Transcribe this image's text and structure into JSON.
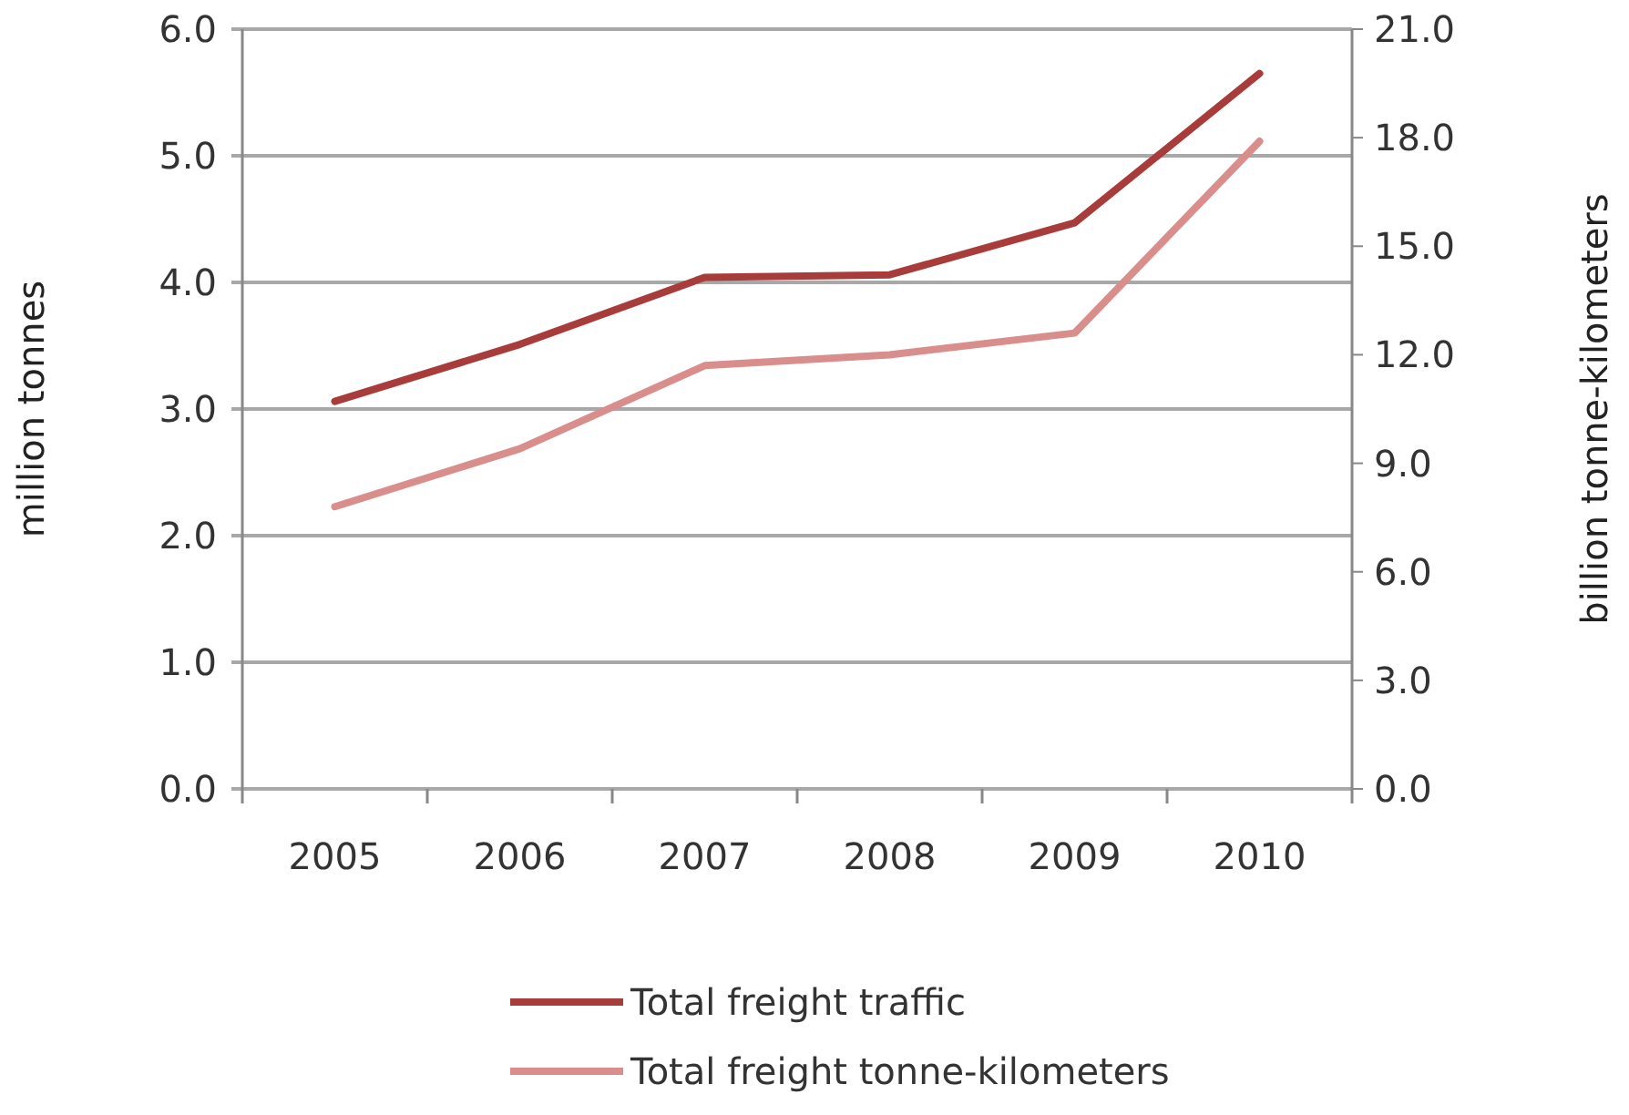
{
  "chart_data": {
    "type": "line",
    "categories": [
      "2005",
      "2006",
      "2007",
      "2008",
      "2009",
      "2010"
    ],
    "ylabel": "million tonnes",
    "y2label": "billion tonne-kilometers",
    "series": [
      {
        "name": "Total freight traffic",
        "color": "#a83c3a",
        "values": [
          3.06,
          3.51,
          4.04,
          4.06,
          4.47,
          5.65
        ]
      },
      {
        "name": "Total freight tonne-kilometers",
        "color": "#d98e8c",
        "axis": "y2",
        "values": [
          7.8,
          9.4,
          11.7,
          12.0,
          12.6,
          17.9
        ]
      }
    ],
    "ylim": [
      0,
      6
    ],
    "yticks": [
      {
        "value": 0,
        "label": "0.0"
      },
      {
        "value": 1,
        "label": "1.0"
      },
      {
        "value": 2,
        "label": "2.0"
      },
      {
        "value": 3,
        "label": "3.0"
      },
      {
        "value": 4,
        "label": "4.0"
      },
      {
        "value": 5,
        "label": "5.0"
      },
      {
        "value": 6,
        "label": "6.0"
      }
    ],
    "y2lim": [
      0,
      21
    ],
    "y2ticks": [
      {
        "value": 0,
        "label": "0.0"
      },
      {
        "value": 3,
        "label": "3.0"
      },
      {
        "value": 6,
        "label": "6.0"
      },
      {
        "value": 9,
        "label": "9.0"
      },
      {
        "value": 12,
        "label": "12.0"
      },
      {
        "value": 15,
        "label": "15.0"
      },
      {
        "value": 18,
        "label": "18.0"
      },
      {
        "value": 21,
        "label": "21.0"
      }
    ],
    "grid": "y",
    "legend": "bottom",
    "marker": "none",
    "line_style": "solid"
  }
}
